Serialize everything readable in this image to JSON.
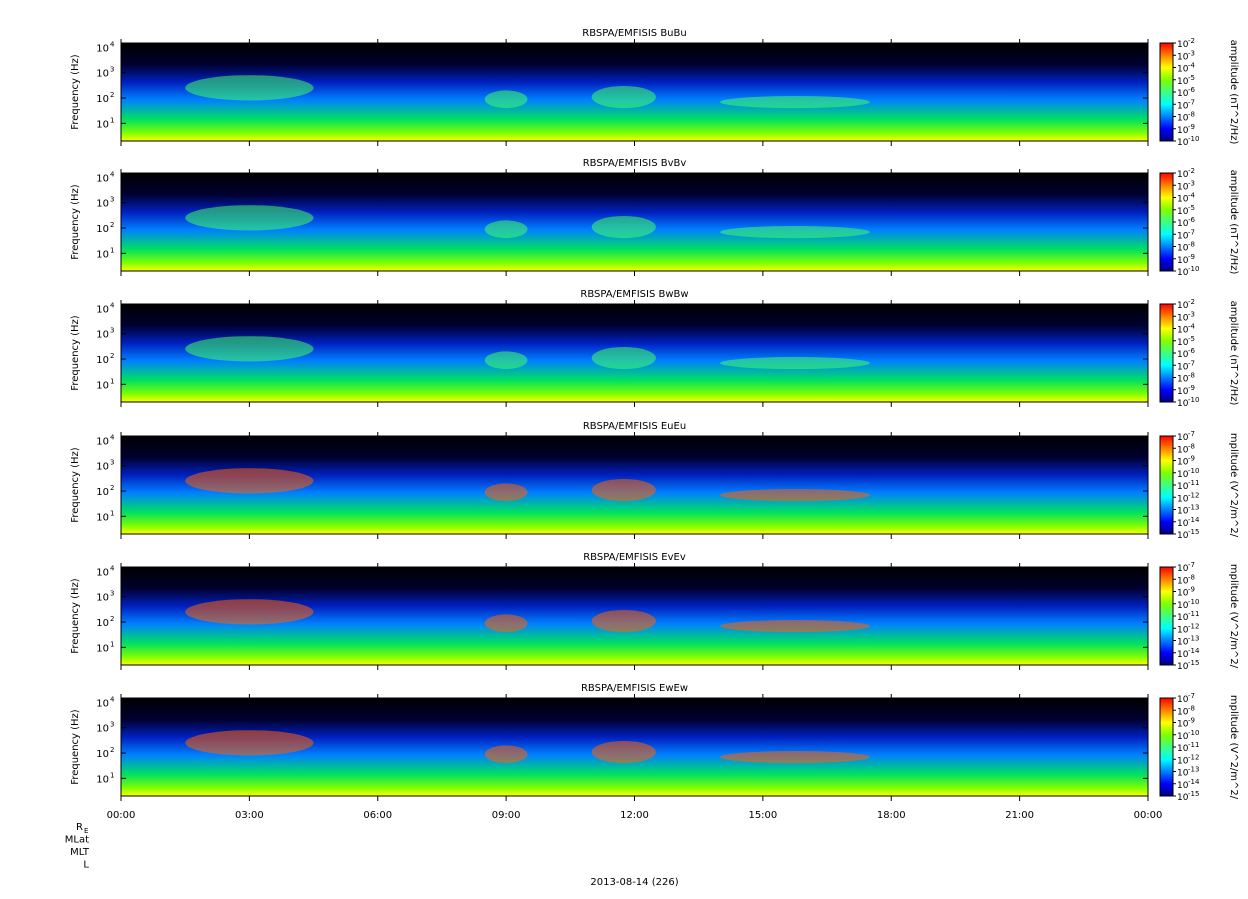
{
  "chart_data": {
    "type": "heatmap",
    "panels": [
      {
        "title": "RBSPA/EMFISIS  BuBu",
        "ylabel": "Frequency (Hz)",
        "colorbar_label": "amplitude (nT^2/Hz)",
        "colorbar_range_exp": [
          -10,
          -2
        ],
        "colorbar_ticks_exp": [
          -2,
          -3,
          -4,
          -5,
          -6,
          -7,
          -8,
          -9,
          -10
        ]
      },
      {
        "title": "RBSPA/EMFISIS  BvBv",
        "ylabel": "Frequency (Hz)",
        "colorbar_label": "amplitude (nT^2/Hz)",
        "colorbar_range_exp": [
          -10,
          -2
        ],
        "colorbar_ticks_exp": [
          -2,
          -3,
          -4,
          -5,
          -6,
          -7,
          -8,
          -9,
          -10
        ]
      },
      {
        "title": "RBSPA/EMFISIS  BwBw",
        "ylabel": "Frequency (Hz)",
        "colorbar_label": "amplitude (nT^2/Hz)",
        "colorbar_range_exp": [
          -10,
          -2
        ],
        "colorbar_ticks_exp": [
          -2,
          -3,
          -4,
          -5,
          -6,
          -7,
          -8,
          -9,
          -10
        ]
      },
      {
        "title": "RBSPA/EMFISIS  EuEu",
        "ylabel": "Frequency (Hz)",
        "colorbar_label": "mplitude (V^2/m^2/",
        "colorbar_range_exp": [
          -15,
          -7
        ],
        "colorbar_ticks_exp": [
          -7,
          -8,
          -9,
          -10,
          -11,
          -12,
          -13,
          -14,
          -15
        ]
      },
      {
        "title": "RBSPA/EMFISIS  EvEv",
        "ylabel": "Frequency (Hz)",
        "colorbar_label": "mplitude (V^2/m^2/",
        "colorbar_range_exp": [
          -15,
          -7
        ],
        "colorbar_ticks_exp": [
          -7,
          -8,
          -9,
          -10,
          -11,
          -12,
          -13,
          -14,
          -15
        ]
      },
      {
        "title": "RBSPA/EMFISIS  EwEw",
        "ylabel": "Frequency (Hz)",
        "colorbar_label": "mplitude (V^2/m^2/",
        "colorbar_range_exp": [
          -15,
          -7
        ],
        "colorbar_ticks_exp": [
          -7,
          -8,
          -9,
          -10,
          -11,
          -12,
          -13,
          -14,
          -15
        ]
      }
    ],
    "y_scale": "log",
    "y_ticks": [
      10,
      100,
      1000,
      10000
    ],
    "y_tick_labels": [
      "10",
      "10",
      "10",
      "10"
    ],
    "y_tick_exponents": [
      "1",
      "2",
      "3",
      "4"
    ],
    "ylim": [
      2,
      15000
    ],
    "x_ticks": [
      "00:00",
      "03:00",
      "06:00",
      "09:00",
      "12:00",
      "15:00",
      "18:00",
      "21:00",
      "00:00"
    ],
    "x_range_hours": [
      0,
      24
    ],
    "ephemeris_labels": [
      "R",
      "MLat",
      "MLT",
      "L"
    ],
    "ephemeris_subscript": "E",
    "xlabel": "2013-08-14 (226)",
    "colorscale": [
      "#000080",
      "#0000ff",
      "#0080ff",
      "#00ffff",
      "#40ff80",
      "#80ff00",
      "#ffff00",
      "#ff8000",
      "#ff0000"
    ]
  }
}
